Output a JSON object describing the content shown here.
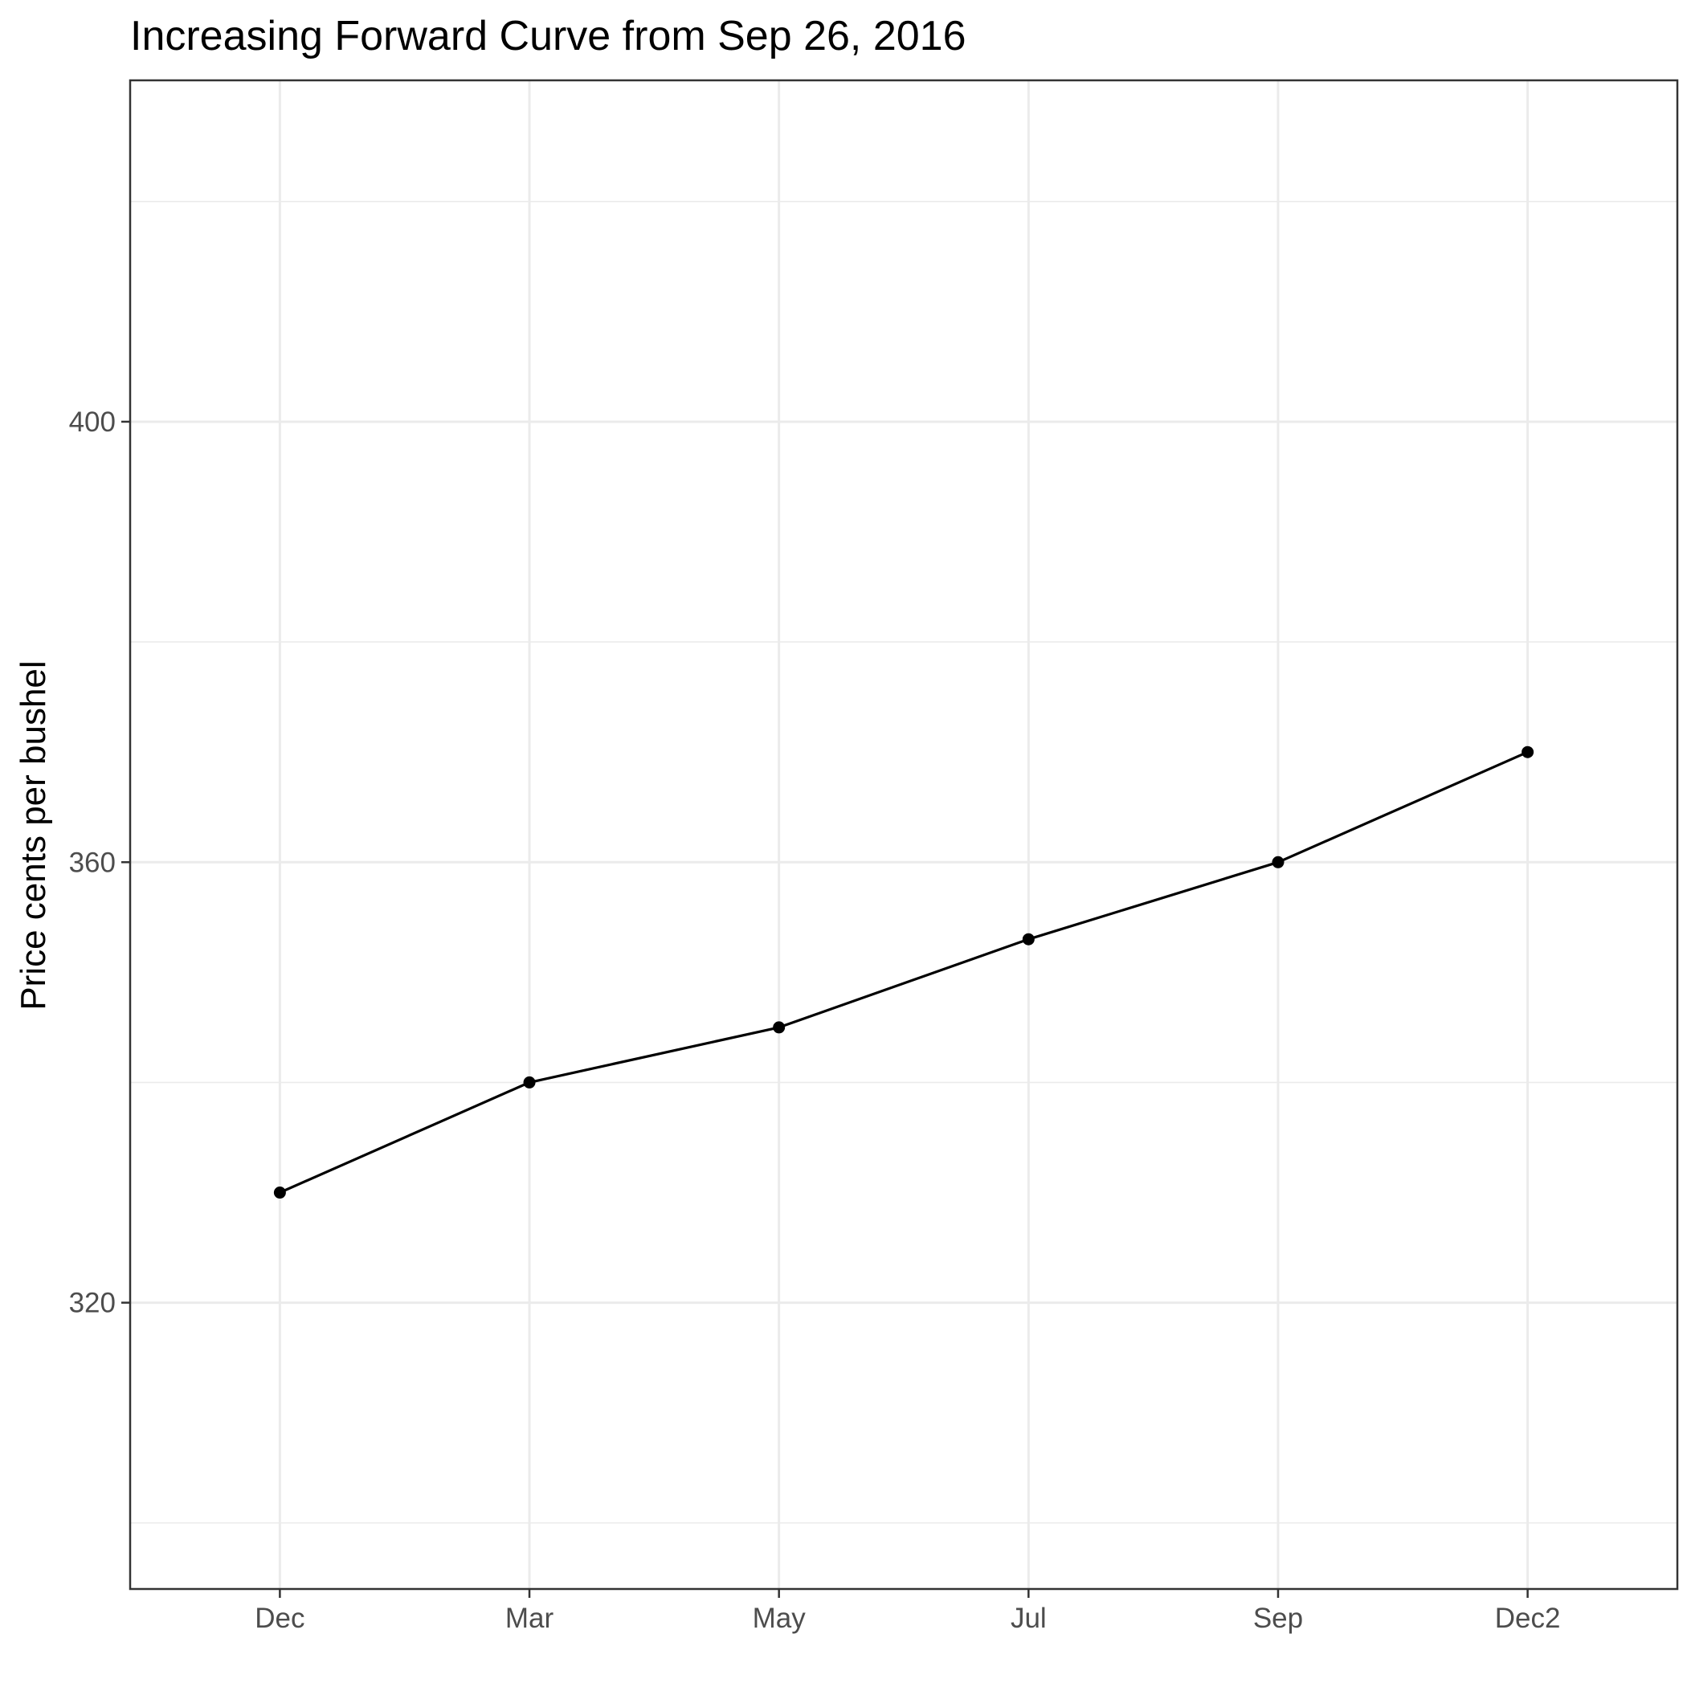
{
  "chart_data": {
    "type": "line",
    "title": "Increasing Forward Curve from Sep 26, 2016",
    "xlabel": "",
    "ylabel": "Price cents per bushel",
    "categories": [
      "Dec",
      "Mar",
      "May",
      "Jul",
      "Sep",
      "Dec2"
    ],
    "series": [
      {
        "values": [
          330,
          340,
          345,
          353,
          360,
          370
        ]
      }
    ],
    "ylim": [
      294,
      431
    ],
    "y_ticks": [
      320,
      360,
      400
    ],
    "y_tick_labels": [
      "320",
      "360",
      "400"
    ],
    "grid": true,
    "legend": "none",
    "colors": {
      "series": "#000000",
      "grid": "#ebebeb",
      "panel_border": "#333333",
      "tick_text": "#4d4d4d",
      "background": "#ffffff"
    }
  }
}
